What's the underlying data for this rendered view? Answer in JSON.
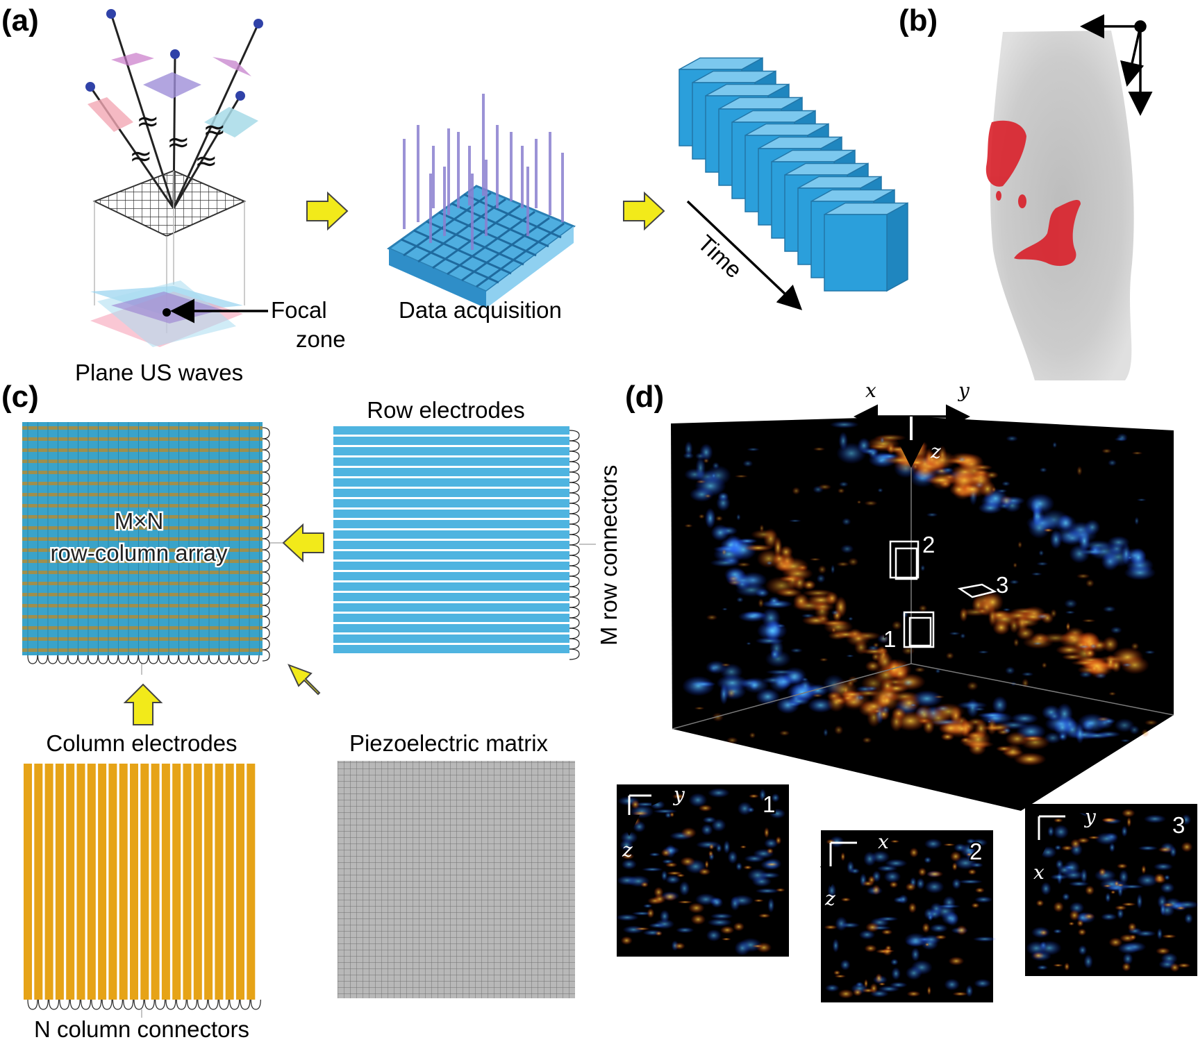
{
  "panels": {
    "a": {
      "letter": "(a)",
      "focal_label_1": "Focal",
      "focal_label_2": "zone",
      "plane_waves_label": "Plane US waves",
      "acquisition_label": "Data acquisition",
      "time_label": "Time"
    },
    "b": {
      "letter": "(b)"
    },
    "c": {
      "letter": "(c)",
      "array_label_1": "M×N",
      "array_label_2": "row-column array",
      "row_electrodes_label": "Row electrodes",
      "row_connectors_label": "M row connectors",
      "column_electrodes_label": "Column electrodes",
      "piezo_label": "Piezoelectric matrix",
      "column_connectors_label": "N column connectors"
    },
    "d": {
      "letter": "(d)",
      "axis_x": "x",
      "axis_y": "y",
      "axis_z": "z",
      "roi_labels": [
        "1",
        "2",
        "3"
      ],
      "insets": [
        {
          "number": "1",
          "h_axis": "y",
          "v_axis": "z"
        },
        {
          "number": "2",
          "h_axis": "x",
          "v_axis": "z"
        },
        {
          "number": "3",
          "h_axis": "y",
          "v_axis": "x"
        }
      ]
    }
  },
  "colors": {
    "arrow_yellow": "#f2ea1a",
    "block_blue": "#2b9fdb",
    "row_electrode": "#4fb4e0",
    "column_electrode": "#e6a317",
    "vessel_red": "#d9202a",
    "flow_blue": "#1e6bff",
    "flow_orange": "#ff8a1a"
  }
}
